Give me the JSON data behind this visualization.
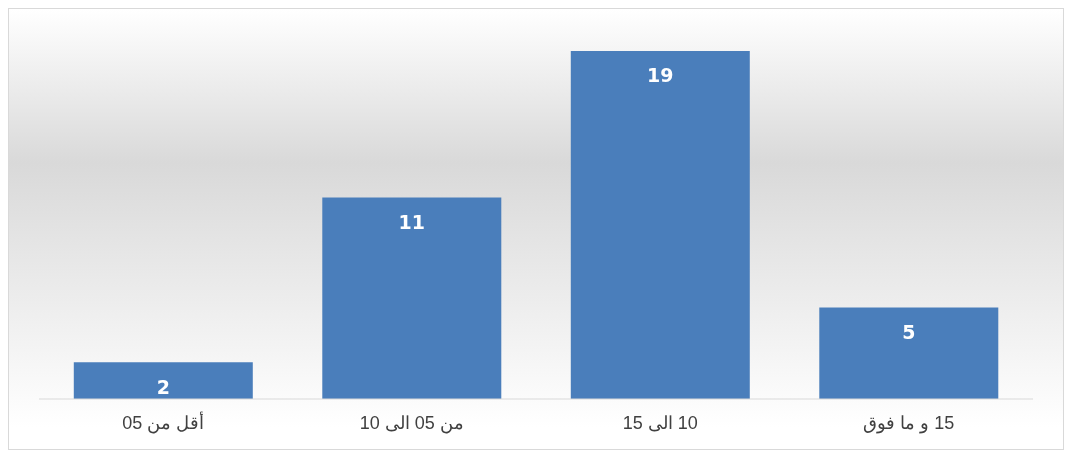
{
  "chart_data": {
    "type": "bar",
    "categories": [
      "أقل من 05",
      "من 05 الى 10",
      "10 الى 15",
      "15 و ما فوق"
    ],
    "values": [
      2,
      11,
      19,
      5
    ],
    "color": "#4a7ebb",
    "data_labels": true
  }
}
